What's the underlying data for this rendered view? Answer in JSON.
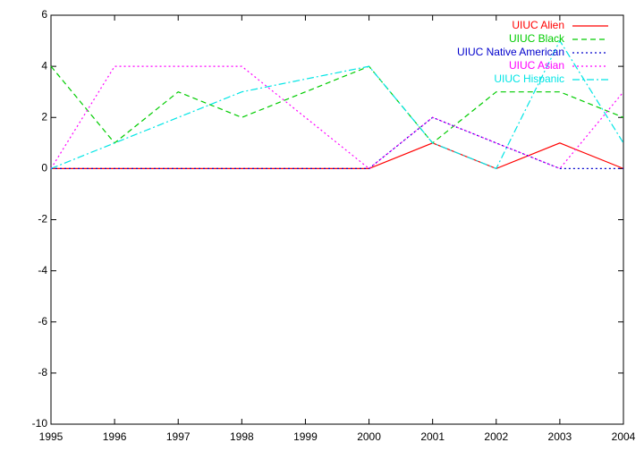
{
  "chart_data": {
    "type": "line",
    "x": [
      1995,
      1996,
      1997,
      1998,
      1999,
      2000,
      2001,
      2002,
      2003,
      2004
    ],
    "xlim": [
      1995,
      2004
    ],
    "xticks": [
      1995,
      1996,
      1997,
      1998,
      1999,
      2000,
      2001,
      2002,
      2003,
      2004
    ],
    "ylim": [
      -10,
      6
    ],
    "yticks": [
      -10,
      -8,
      -6,
      -4,
      -2,
      0,
      2,
      4,
      6
    ],
    "legend": "top-right",
    "series": [
      {
        "name": "UIUC Alien",
        "color": "#ff0000",
        "dash": "solid",
        "values": [
          0,
          0,
          0,
          0,
          0,
          0,
          1,
          0,
          1,
          0
        ]
      },
      {
        "name": "UIUC Black",
        "color": "#00cc00",
        "dash": "dashed",
        "values": [
          4,
          1,
          3,
          2,
          3,
          4,
          1,
          3,
          3,
          2
        ]
      },
      {
        "name": "UIUC Native American",
        "color": "#0000cc",
        "dash": "dotted",
        "values": [
          0,
          0,
          0,
          0,
          0,
          0,
          2,
          1,
          0,
          0
        ]
      },
      {
        "name": "UIUC Asian",
        "color": "#ff00ff",
        "dash": "dotted",
        "values": [
          0,
          4,
          4,
          4,
          2,
          0,
          2,
          1,
          0,
          3
        ]
      },
      {
        "name": "UIUC Hispanic",
        "color": "#00e5e5",
        "dash": "dashdot",
        "values": [
          0,
          1,
          2,
          3,
          3.5,
          4,
          1,
          0,
          5,
          1
        ]
      }
    ]
  }
}
